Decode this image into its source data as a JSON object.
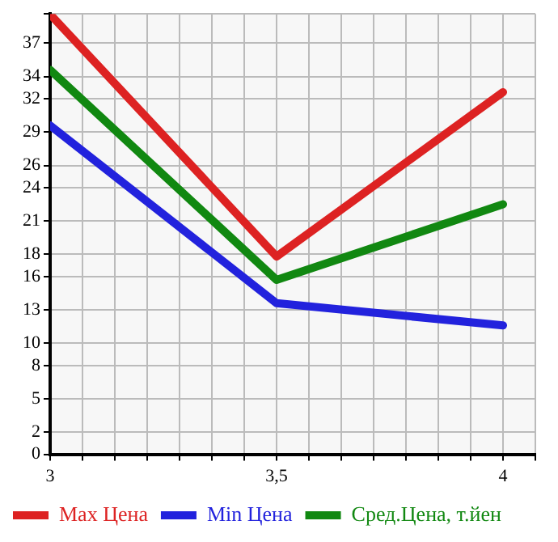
{
  "chart_data": {
    "type": "line",
    "x": [
      3,
      3.5,
      4
    ],
    "xlim": [
      3,
      4.0714
    ],
    "xticks": [
      3,
      {
        "value": 3.0714,
        "label": null
      },
      {
        "value": 3.1429,
        "label": null
      },
      {
        "value": 3.2143,
        "label": null
      },
      {
        "value": 3.2857,
        "label": null
      },
      {
        "value": 3.3571,
        "label": null
      },
      {
        "value": 3.4286,
        "label": null
      },
      {
        "value": 3.5,
        "label": "3,5"
      },
      {
        "value": 3.5714,
        "label": null
      },
      {
        "value": 3.6429,
        "label": null
      },
      {
        "value": 3.7143,
        "label": null
      },
      {
        "value": 3.7857,
        "label": null
      },
      {
        "value": 3.8571,
        "label": null
      },
      {
        "value": 3.9286,
        "label": null
      },
      4,
      {
        "value": 4.0714,
        "label": null
      }
    ],
    "ylim": [
      0,
      39.64
    ],
    "yticks": [
      0,
      2,
      5,
      8,
      10,
      13,
      16,
      18,
      21,
      24,
      26,
      29,
      32,
      34,
      37,
      {
        "value": 39.64,
        "label": null
      }
    ],
    "series": [
      {
        "name": "Max Цена",
        "color": "#dd2222",
        "values": [
          39.6,
          17.8,
          32.6
        ]
      },
      {
        "name": "Min Цена",
        "color": "#2222dd",
        "values": [
          29.6,
          13.6,
          11.6
        ]
      },
      {
        "name": "Сред.Цена, т.йен",
        "color": "#118811",
        "values": [
          34.6,
          15.7,
          22.5
        ]
      }
    ],
    "grid": true,
    "legend": "bottom",
    "marker": "none",
    "line_style": "solid"
  }
}
